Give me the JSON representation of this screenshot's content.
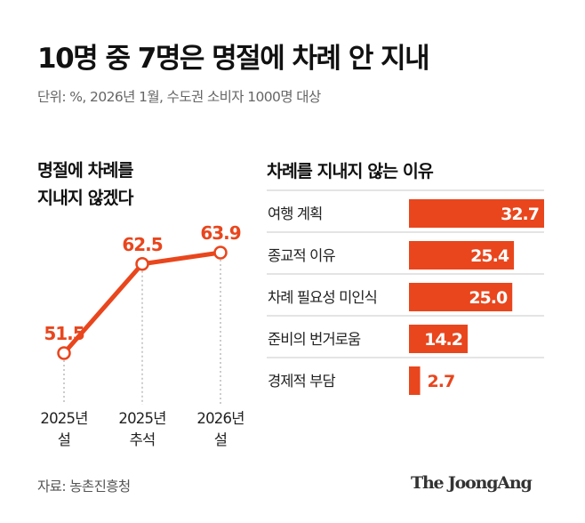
{
  "title": "10명 중 7명은 명절에 차례 안 지내",
  "subtitle": "단위: %, 2026년 1월, 수도권 소비자 1000명 대상",
  "source": "자료: 농촌진흥청",
  "brand": "The JoongAng",
  "colors": {
    "accent": "#e9461d",
    "grid": "#999999",
    "barText": "#ffffff"
  },
  "chart_data": [
    {
      "type": "line",
      "title_lines": [
        "명절에 차례를",
        "지내지 않겠다"
      ],
      "categories": [
        [
          "2025년",
          "설"
        ],
        [
          "2025년",
          "추석"
        ],
        [
          "2026년",
          "설"
        ]
      ],
      "values": [
        51.5,
        62.5,
        63.9
      ],
      "data_labels": [
        "51.5",
        "62.5",
        "63.9"
      ],
      "grid": "dotted-vertical"
    },
    {
      "type": "bar",
      "orientation": "horizontal",
      "title": "차례를 지내지 않는 이유",
      "categories": [
        "여행 계획",
        "종교적 이유",
        "차례 필요성 미인식",
        "준비의 번거로움",
        "경제적 부담"
      ],
      "values": [
        32.7,
        25.4,
        25.0,
        14.2,
        2.7
      ],
      "data_labels": [
        "32.7",
        "25.4",
        "25.0",
        "14.2",
        "2.7"
      ],
      "xlim": [
        0,
        32.7
      ]
    }
  ]
}
